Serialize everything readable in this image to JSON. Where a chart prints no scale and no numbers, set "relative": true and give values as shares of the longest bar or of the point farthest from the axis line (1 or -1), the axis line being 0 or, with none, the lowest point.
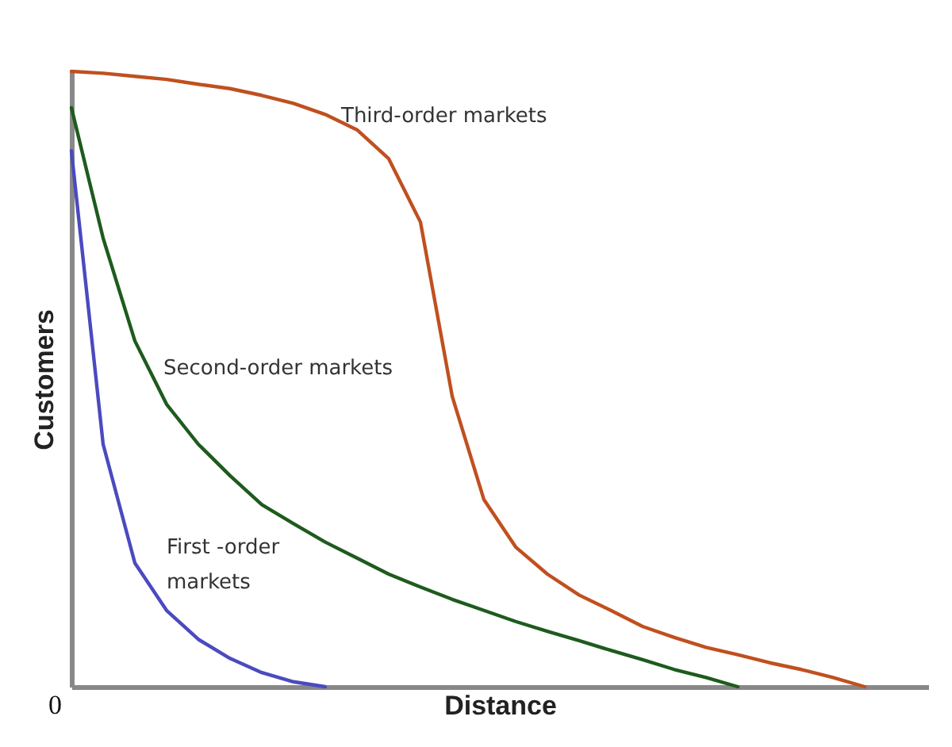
{
  "chart_data": {
    "type": "line",
    "relative": true,
    "xlabel": "Distance",
    "ylabel": "Customers",
    "legend": false,
    "marker": "none",
    "grid": false,
    "categories": [
      null,
      null,
      null,
      null,
      null,
      null,
      null,
      null,
      null,
      null,
      null,
      null,
      null,
      null,
      null,
      null,
      null,
      null,
      null,
      null,
      null,
      null,
      null,
      null,
      null,
      null,
      null,
      null
    ],
    "series": [
      {
        "name": "Third-order markets",
        "color": "#c0501f",
        "values": [
          1,
          0.997,
          0.992,
          0.987,
          0.979,
          0.972,
          0.961,
          0.948,
          0.93,
          0.905,
          0.858,
          0.755,
          0.472,
          0.304,
          0.227,
          0.183,
          0.149,
          0.124,
          0.098,
          0.08,
          0.064,
          0.052,
          0.039,
          0.028,
          0.015,
          0,
          null,
          null
        ]
      },
      {
        "name": "Second-order markets",
        "color": "#1e5b1e",
        "values": [
          0.941,
          0.729,
          0.562,
          0.459,
          0.394,
          0.343,
          0.296,
          0.265,
          0.235,
          0.209,
          0.183,
          0.162,
          0.142,
          0.124,
          0.106,
          0.09,
          0.075,
          0.059,
          0.044,
          0.028,
          0.015,
          0,
          null,
          null,
          null,
          null,
          null,
          null
        ]
      },
      {
        "name": "First -order markets",
        "color": "#4a4ac0",
        "values": [
          0.871,
          0.394,
          0.201,
          0.124,
          0.077,
          0.046,
          0.023,
          0.008,
          0,
          null,
          null,
          null,
          null,
          null,
          null,
          null,
          null,
          null,
          null,
          null,
          null,
          null,
          null,
          null,
          null,
          null,
          null,
          null
        ]
      }
    ],
    "annotations": [
      "0"
    ]
  }
}
